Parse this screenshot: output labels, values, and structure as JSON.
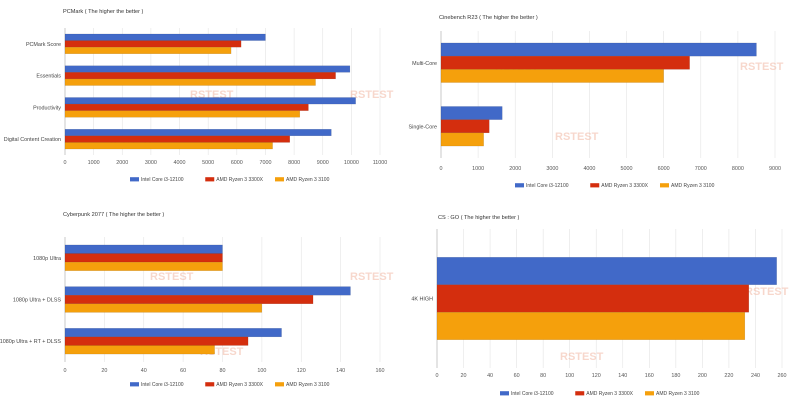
{
  "colors": {
    "intel": "#4169c8",
    "amd3300x": "#d42e0e",
    "amd3100": "#f5a00c"
  },
  "watermark": {
    "text": "RSTEST"
  },
  "chart_data": [
    {
      "id": "pcmark",
      "type": "bar",
      "orientation": "horizontal",
      "title": "PCMark ( The higher the better )",
      "categories": [
        "PCMark Score",
        "Essentials",
        "Productivity",
        "Digital Content Creation"
      ],
      "series": [
        {
          "name": "Intel Core i3-12100",
          "color": "#4169c8",
          "values": [
            7000,
            9950,
            10150,
            9300
          ]
        },
        {
          "name": "AMD Ryzen 3 3300X",
          "color": "#d42e0e",
          "values": [
            6150,
            9450,
            8500,
            7850
          ]
        },
        {
          "name": "AMD Ryzen 3 3100",
          "color": "#f5a00c",
          "values": [
            5800,
            8750,
            8200,
            7250
          ]
        }
      ],
      "xlim": [
        0,
        11000
      ],
      "xticks": [
        0,
        1000,
        2000,
        3000,
        4000,
        5000,
        6000,
        7000,
        8000,
        9000,
        10000,
        11000
      ],
      "grid": true,
      "legend": "bottom"
    },
    {
      "id": "cinebench",
      "type": "bar",
      "orientation": "horizontal",
      "title": "Cinebench R23 ( The higher the better )",
      "categories": [
        "Multi-Core",
        "Single-Core"
      ],
      "series": [
        {
          "name": "Intel Core i3-12100",
          "color": "#4169c8",
          "values": [
            8500,
            1650
          ]
        },
        {
          "name": "AMD Ryzen 3 3300X",
          "color": "#d42e0e",
          "values": [
            6700,
            1300
          ]
        },
        {
          "name": "AMD Ryzen 3 3100",
          "color": "#f5a00c",
          "values": [
            6000,
            1150
          ]
        }
      ],
      "xlim": [
        0,
        9000
      ],
      "xticks": [
        0,
        1000,
        2000,
        3000,
        4000,
        5000,
        6000,
        7000,
        8000,
        9000
      ],
      "grid": true,
      "legend": "bottom"
    },
    {
      "id": "cyberpunk",
      "type": "bar",
      "orientation": "horizontal",
      "title": "Cyberpunk 2077 ( The higher the better )",
      "categories": [
        "1080p Ultra",
        "1080p Ultra + DLSS",
        "1080p Ultra + RT + DLSS"
      ],
      "series": [
        {
          "name": "Intel Core i3-12100",
          "color": "#4169c8",
          "values": [
            80,
            145,
            110
          ]
        },
        {
          "name": "AMD Ryzen 3 3300X",
          "color": "#d42e0e",
          "values": [
            80,
            126,
            93
          ]
        },
        {
          "name": "AMD Ryzen 3 3100",
          "color": "#f5a00c",
          "values": [
            80,
            100,
            76
          ]
        }
      ],
      "xlim": [
        0,
        160
      ],
      "xticks": [
        0,
        20,
        40,
        60,
        80,
        100,
        120,
        140,
        160
      ],
      "grid": true,
      "legend": "bottom"
    },
    {
      "id": "csgo",
      "type": "bar",
      "orientation": "horizontal",
      "title": "CS : GO ( The higher the better )",
      "categories": [
        "4K HIGH"
      ],
      "series": [
        {
          "name": "Intel Core i3-12100",
          "color": "#4169c8",
          "values": [
            256
          ]
        },
        {
          "name": "AMD Ryzen 3 3300X",
          "color": "#d42e0e",
          "values": [
            235
          ]
        },
        {
          "name": "AMD Ryzen 3 3100",
          "color": "#f5a00c",
          "values": [
            232
          ]
        }
      ],
      "xlim": [
        0,
        260
      ],
      "xticks": [
        0,
        20,
        40,
        60,
        80,
        100,
        120,
        140,
        160,
        180,
        200,
        220,
        240,
        260
      ],
      "grid": true,
      "legend": "bottom"
    }
  ]
}
